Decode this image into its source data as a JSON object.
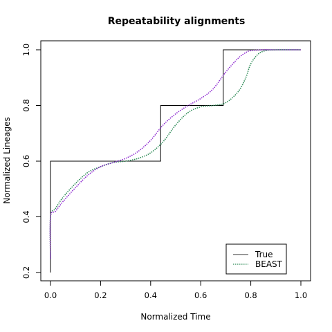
{
  "chart_data": {
    "type": "line",
    "title": "Repeatability alignments",
    "xlabel": "Normalized Time",
    "ylabel": "Normalized Lineages",
    "xlim": [
      0,
      1
    ],
    "ylim": [
      0.2,
      1.0
    ],
    "xticks": [
      "0.0",
      "0.2",
      "0.4",
      "0.6",
      "0.8",
      "1.0"
    ],
    "yticks": [
      "0.2",
      "0.4",
      "0.6",
      "0.8",
      "1.0"
    ],
    "legend_position": "bottom-right",
    "legend": [
      {
        "label": "True",
        "style": "solid",
        "color": "#333333"
      },
      {
        "label": "BEAST",
        "style": "dotted",
        "color": "#2e8b57"
      }
    ],
    "series": [
      {
        "name": "True",
        "style": "solid",
        "color": "#000000",
        "x": [
          0,
          0,
          0.44,
          0.44,
          0.69,
          0.69,
          1.0
        ],
        "y": [
          0.2,
          0.6,
          0.6,
          0.8,
          0.8,
          1.0,
          1.0
        ]
      },
      {
        "style": "dotted",
        "color": "#2e8b57",
        "x": [
          0,
          0.0,
          0.02,
          0.05,
          0.1,
          0.15,
          0.2,
          0.25,
          0.3,
          0.35,
          0.4,
          0.45,
          0.5,
          0.55,
          0.6,
          0.65,
          0.7,
          0.75,
          0.78,
          0.8,
          0.83,
          0.86,
          0.9,
          1.0
        ],
        "y": [
          0.25,
          0.4,
          0.43,
          0.47,
          0.52,
          0.56,
          0.58,
          0.595,
          0.6,
          0.61,
          0.63,
          0.67,
          0.73,
          0.775,
          0.795,
          0.8,
          0.81,
          0.85,
          0.9,
          0.95,
          0.985,
          0.997,
          1.0,
          1.0
        ]
      },
      {
        "style": "dotted",
        "color": "#8e2bd0",
        "x": [
          0,
          0.0,
          0.02,
          0.05,
          0.1,
          0.15,
          0.2,
          0.25,
          0.3,
          0.35,
          0.4,
          0.45,
          0.5,
          0.55,
          0.6,
          0.65,
          0.7,
          0.75,
          0.78,
          0.8,
          0.85,
          0.9,
          1.0
        ],
        "y": [
          0.25,
          0.4,
          0.42,
          0.455,
          0.505,
          0.55,
          0.58,
          0.595,
          0.61,
          0.635,
          0.675,
          0.73,
          0.77,
          0.8,
          0.825,
          0.86,
          0.92,
          0.97,
          0.99,
          0.997,
          1.0,
          1.0,
          1.0
        ]
      }
    ]
  }
}
